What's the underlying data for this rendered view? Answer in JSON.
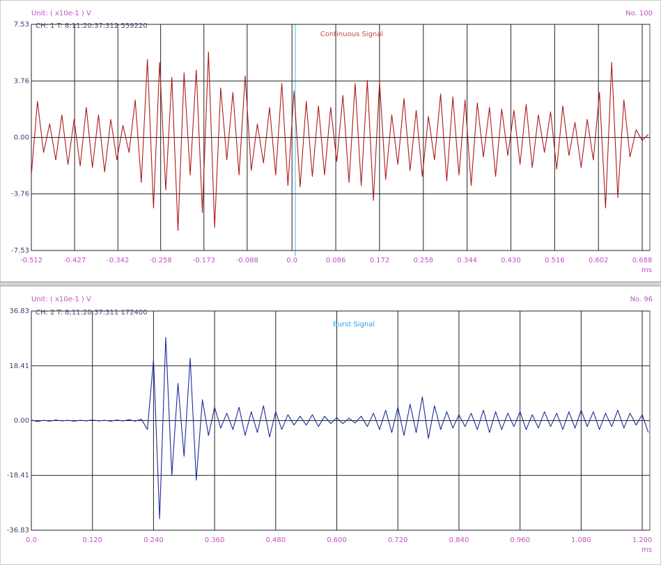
{
  "chart_data": [
    {
      "type": "line",
      "title": "Continuous Signal",
      "title_color": "#c94a4a",
      "unit_label": "Unit: ( x10e-1 ) V",
      "number_label": "No. 100",
      "channel_label": "CH:  1  T:  8:11:20:37:312 559220",
      "x_unit": "ms",
      "xlim": [
        -0.512,
        0.703
      ],
      "ylim": [
        -7.53,
        7.53
      ],
      "xticks": [
        -0.512,
        -0.427,
        -0.342,
        -0.258,
        -0.173,
        -0.088,
        {
          "value": 0,
          "label": "0.0"
        },
        0.086,
        0.172,
        0.258,
        0.344,
        {
          "value": 0.43,
          "label": "0.430"
        },
        0.516,
        0.602,
        0.688
      ],
      "yticks": [
        7.53,
        3.76,
        {
          "value": 0,
          "label": "0.00"
        },
        -3.76,
        -7.53
      ],
      "grid": true,
      "color": "#b01818",
      "x": [
        -0.512,
        -0.5,
        -0.488,
        -0.476,
        -0.464,
        -0.452,
        -0.44,
        -0.428,
        -0.416,
        -0.404,
        -0.392,
        -0.38,
        -0.368,
        -0.356,
        -0.344,
        -0.332,
        -0.32,
        -0.308,
        -0.296,
        -0.284,
        -0.272,
        -0.26,
        -0.248,
        -0.236,
        -0.224,
        -0.212,
        -0.2,
        -0.188,
        -0.176,
        -0.164,
        -0.152,
        -0.14,
        -0.128,
        -0.116,
        -0.104,
        -0.092,
        -0.08,
        -0.068,
        -0.056,
        -0.044,
        -0.032,
        -0.02,
        -0.008,
        0.004,
        0.016,
        0.028,
        0.04,
        0.052,
        0.064,
        0.076,
        0.088,
        0.1,
        0.112,
        0.124,
        0.136,
        0.148,
        0.16,
        0.172,
        0.184,
        0.196,
        0.208,
        0.22,
        0.232,
        0.244,
        0.256,
        0.268,
        0.28,
        0.292,
        0.304,
        0.316,
        0.328,
        0.34,
        0.352,
        0.364,
        0.376,
        0.388,
        0.4,
        0.412,
        0.424,
        0.436,
        0.448,
        0.46,
        0.472,
        0.484,
        0.496,
        0.508,
        0.52,
        0.532,
        0.544,
        0.556,
        0.568,
        0.58,
        0.592,
        0.604,
        0.616,
        0.628,
        0.64,
        0.652,
        0.664,
        0.676,
        0.688,
        0.7
      ],
      "values": [
        -2.5,
        2.4,
        -1.0,
        0.9,
        -1.5,
        1.5,
        -1.8,
        1.2,
        -1.9,
        2.0,
        -2.0,
        1.5,
        -2.3,
        1.2,
        -1.5,
        0.8,
        -1.0,
        2.5,
        -3.0,
        5.2,
        -4.7,
        5.0,
        -3.5,
        4.0,
        -6.2,
        4.3,
        -2.5,
        4.5,
        -5.0,
        5.7,
        -6.0,
        3.3,
        -1.5,
        3.0,
        -2.5,
        4.1,
        -2.2,
        0.9,
        -1.7,
        2.0,
        -2.5,
        3.6,
        -3.2,
        3.1,
        -3.3,
        2.4,
        -2.6,
        2.1,
        -2.5,
        2.0,
        -1.6,
        2.8,
        -3.0,
        3.6,
        -3.2,
        3.8,
        -4.2,
        3.7,
        -2.8,
        1.5,
        -1.8,
        2.6,
        -2.2,
        1.8,
        -2.6,
        1.4,
        -1.5,
        2.9,
        -2.9,
        2.7,
        -2.5,
        2.5,
        -3.2,
        2.3,
        -1.3,
        2.0,
        -2.6,
        1.9,
        -1.2,
        1.8,
        -1.8,
        2.2,
        -2.0,
        1.5,
        -1.0,
        1.7,
        -2.1,
        2.1,
        -1.2,
        1.0,
        -2.0,
        1.2,
        -1.5,
        3.0,
        -4.7,
        5.0,
        -4.0,
        2.5,
        -1.3,
        0.5,
        -0.2,
        0.2
      ]
    },
    {
      "type": "line",
      "title": "Burst Signal",
      "title_color": "#2aa4e0",
      "unit_label": "Unit: ( x10e-1 ) V",
      "number_label": "No. 96",
      "channel_label": "CH:  2  T:  8;11:20:37:311 172400",
      "x_unit": "ms",
      "xlim": [
        0,
        1.215
      ],
      "ylim": [
        -36.83,
        36.83
      ],
      "xticks": [
        {
          "value": 0,
          "label": "0.0"
        },
        {
          "value": 0.12,
          "label": "0.120"
        },
        {
          "value": 0.24,
          "label": "0.240"
        },
        {
          "value": 0.36,
          "label": "0.360"
        },
        {
          "value": 0.48,
          "label": "0.480"
        },
        {
          "value": 0.6,
          "label": "0.600"
        },
        {
          "value": 0.72,
          "label": "0.720"
        },
        {
          "value": 0.84,
          "label": "0.840"
        },
        {
          "value": 0.96,
          "label": "0.960"
        },
        {
          "value": 1.08,
          "label": "1.080"
        },
        {
          "value": 1.2,
          "label": "1.200"
        }
      ],
      "yticks": [
        36.83,
        18.41,
        {
          "value": 0,
          "label": "0.00"
        },
        -18.41,
        -36.83
      ],
      "grid": true,
      "color": "#1a2a9a",
      "x": [
        0,
        0.012,
        0.024,
        0.036,
        0.048,
        0.06,
        0.072,
        0.084,
        0.096,
        0.108,
        0.12,
        0.132,
        0.144,
        0.156,
        0.168,
        0.18,
        0.192,
        0.204,
        0.216,
        0.228,
        0.24,
        0.252,
        0.264,
        0.276,
        0.288,
        0.3,
        0.312,
        0.324,
        0.336,
        0.348,
        0.36,
        0.372,
        0.384,
        0.396,
        0.408,
        0.42,
        0.432,
        0.444,
        0.456,
        0.468,
        0.48,
        0.492,
        0.504,
        0.516,
        0.528,
        0.54,
        0.552,
        0.564,
        0.576,
        0.588,
        0.6,
        0.612,
        0.624,
        0.636,
        0.648,
        0.66,
        0.672,
        0.684,
        0.696,
        0.708,
        0.72,
        0.732,
        0.744,
        0.756,
        0.768,
        0.78,
        0.792,
        0.804,
        0.816,
        0.828,
        0.84,
        0.852,
        0.864,
        0.876,
        0.888,
        0.9,
        0.912,
        0.924,
        0.936,
        0.948,
        0.96,
        0.972,
        0.984,
        0.996,
        1.008,
        1.02,
        1.032,
        1.044,
        1.056,
        1.068,
        1.08,
        1.092,
        1.104,
        1.116,
        1.128,
        1.14,
        1.152,
        1.164,
        1.176,
        1.188,
        1.2,
        1.212
      ],
      "values": [
        0.2,
        -0.3,
        0.1,
        -0.2,
        0.2,
        -0.1,
        0.1,
        -0.2,
        0.1,
        -0.1,
        0.2,
        -0.1,
        0.1,
        -0.2,
        0.2,
        -0.1,
        0.3,
        -0.2,
        0.5,
        -3,
        20.5,
        -33,
        28,
        -18.5,
        12.5,
        -12,
        21,
        -20,
        7,
        -5,
        4.5,
        -2.5,
        2.5,
        -3,
        4.5,
        -5,
        3,
        -4,
        5,
        -5.5,
        3,
        -3,
        2,
        -1.5,
        1.5,
        -1.5,
        2,
        -2,
        1.5,
        -1,
        1,
        -1,
        0.8,
        -0.8,
        1.5,
        -2,
        2.5,
        -3,
        3.5,
        -4,
        4.5,
        -5,
        5.5,
        -4,
        8,
        -6,
        5,
        -3,
        3,
        -2.5,
        2,
        -2,
        2.5,
        -3,
        3.5,
        -4,
        3,
        -3,
        2.5,
        -2,
        3,
        -3,
        2,
        -2.5,
        3,
        -2,
        2.5,
        -3,
        3,
        -2.5,
        3.5,
        -2,
        3,
        -3,
        2.5,
        -2,
        3.5,
        -2.5,
        2.5,
        -1.5,
        2,
        -4
      ]
    }
  ]
}
